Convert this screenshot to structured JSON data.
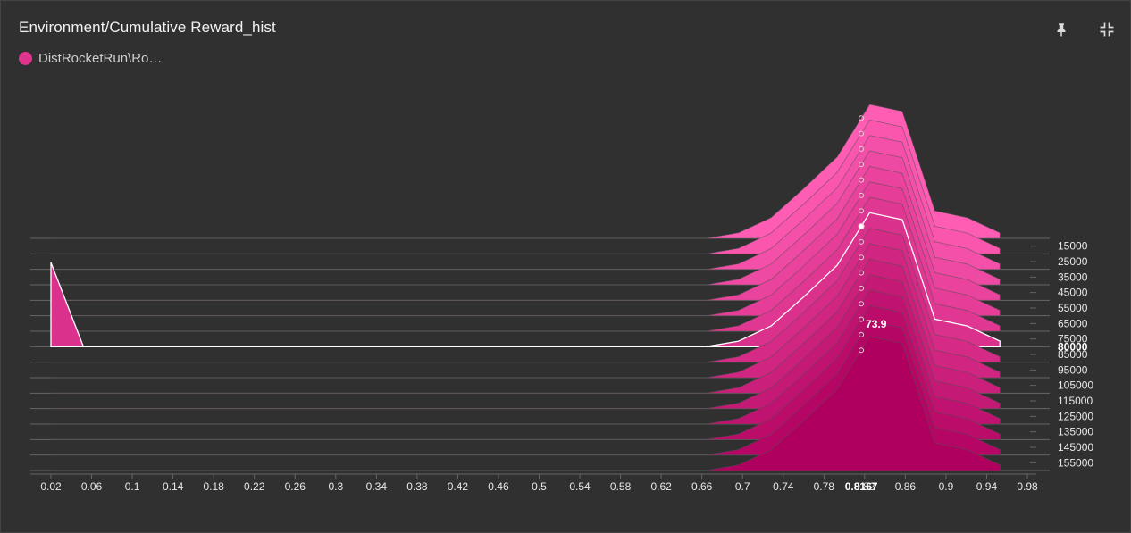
{
  "card": {
    "title": "Environment/Cumulative Reward_hist",
    "legend_label": "DistRocketRun\\Ro…",
    "series_color": "#e0338e"
  },
  "icons": {
    "pin": "pin-icon",
    "collapse": "collapse-icon"
  },
  "chart_data": {
    "type": "histogram-offset",
    "title": "Environment/Cumulative Reward_hist",
    "x_ticks": [
      0.02,
      0.06,
      0.1,
      0.14,
      0.18,
      0.22,
      0.26,
      0.3,
      0.34,
      0.38,
      0.42,
      0.46,
      0.5,
      0.54,
      0.58,
      0.62,
      0.66,
      0.7,
      0.74,
      0.78,
      0.82,
      0.86,
      0.9,
      0.94,
      0.98
    ],
    "xlim": [
      0.02,
      0.98
    ],
    "y_ticks": [
      15000,
      25000,
      35000,
      45000,
      55000,
      65000,
      75000,
      85000,
      95000,
      105000,
      115000,
      125000,
      135000,
      145000,
      155000
    ],
    "ylim": [
      10000,
      160000
    ],
    "hover": {
      "step": 80000,
      "x": 0.8167,
      "value": 73.9,
      "x_label": "0.8167",
      "value_label": "73.9",
      "step_label": "80000"
    },
    "x_grid": [
      0.02,
      0.052,
      0.084,
      0.117,
      0.149,
      0.181,
      0.213,
      0.245,
      0.278,
      0.31,
      0.342,
      0.374,
      0.406,
      0.438,
      0.471,
      0.503,
      0.535,
      0.567,
      0.599,
      0.632,
      0.664,
      0.696,
      0.728,
      0.76,
      0.793,
      0.825,
      0.857,
      0.889,
      0.921,
      0.953
    ],
    "series": [
      {
        "step": 10000,
        "values": [
          0,
          0,
          0,
          0,
          0,
          0,
          0,
          0,
          0,
          0,
          0,
          0,
          0,
          0,
          0,
          0,
          0,
          0,
          0,
          0,
          0,
          4,
          15,
          36,
          59,
          97,
          92,
          20,
          15,
          4
        ]
      },
      {
        "step": 20000,
        "values": [
          0,
          0,
          0,
          0,
          0,
          0,
          0,
          0,
          0,
          0,
          0,
          0,
          0,
          0,
          0,
          0,
          0,
          0,
          0,
          0,
          0,
          4,
          15,
          36,
          59,
          97,
          92,
          20,
          15,
          4
        ]
      },
      {
        "step": 30000,
        "values": [
          0,
          0,
          0,
          0,
          0,
          0,
          0,
          0,
          0,
          0,
          0,
          0,
          0,
          0,
          0,
          0,
          0,
          0,
          0,
          0,
          0,
          4,
          15,
          36,
          59,
          97,
          92,
          20,
          15,
          4
        ]
      },
      {
        "step": 40000,
        "values": [
          0,
          0,
          0,
          0,
          0,
          0,
          0,
          0,
          0,
          0,
          0,
          0,
          0,
          0,
          0,
          0,
          0,
          0,
          0,
          0,
          0,
          4,
          15,
          36,
          59,
          97,
          92,
          20,
          15,
          4
        ]
      },
      {
        "step": 50000,
        "values": [
          0,
          0,
          0,
          0,
          0,
          0,
          0,
          0,
          0,
          0,
          0,
          0,
          0,
          0,
          0,
          0,
          0,
          0,
          0,
          0,
          0,
          4,
          15,
          36,
          59,
          97,
          92,
          20,
          15,
          4
        ]
      },
      {
        "step": 60000,
        "values": [
          0,
          0,
          0,
          0,
          0,
          0,
          0,
          0,
          0,
          0,
          0,
          0,
          0,
          0,
          0,
          0,
          0,
          0,
          0,
          0,
          0,
          4,
          15,
          36,
          59,
          97,
          92,
          20,
          15,
          4
        ]
      },
      {
        "step": 70000,
        "values": [
          0,
          0,
          0,
          0,
          0,
          0,
          0,
          0,
          0,
          0,
          0,
          0,
          0,
          0,
          0,
          0,
          0,
          0,
          0,
          0,
          0,
          4,
          15,
          36,
          59,
          97,
          92,
          20,
          15,
          4
        ]
      },
      {
        "step": 80000,
        "values": [
          61,
          0,
          0,
          0,
          0,
          0,
          0,
          0,
          0,
          0,
          0,
          0,
          0,
          0,
          0,
          0,
          0,
          0,
          0,
          0,
          0,
          4,
          15,
          36,
          59,
          97,
          92,
          20,
          15,
          4
        ]
      },
      {
        "step": 90000,
        "values": [
          0,
          0,
          0,
          0,
          0,
          0,
          0,
          0,
          0,
          0,
          0,
          0,
          0,
          0,
          0,
          0,
          0,
          0,
          0,
          0,
          0,
          4,
          15,
          36,
          59,
          97,
          92,
          20,
          15,
          4
        ]
      },
      {
        "step": 100000,
        "values": [
          0,
          0,
          0,
          0,
          0,
          0,
          0,
          0,
          0,
          0,
          0,
          0,
          0,
          0,
          0,
          0,
          0,
          0,
          0,
          0,
          0,
          4,
          15,
          36,
          59,
          97,
          92,
          20,
          15,
          4
        ]
      },
      {
        "step": 110000,
        "values": [
          0,
          0,
          0,
          0,
          0,
          0,
          0,
          0,
          0,
          0,
          0,
          0,
          0,
          0,
          0,
          0,
          0,
          0,
          0,
          0,
          0,
          4,
          15,
          36,
          59,
          97,
          92,
          20,
          15,
          4
        ]
      },
      {
        "step": 120000,
        "values": [
          0,
          0,
          0,
          0,
          0,
          0,
          0,
          0,
          0,
          0,
          0,
          0,
          0,
          0,
          0,
          0,
          0,
          0,
          0,
          0,
          0,
          4,
          15,
          36,
          59,
          97,
          92,
          20,
          15,
          4
        ]
      },
      {
        "step": 130000,
        "values": [
          0,
          0,
          0,
          0,
          0,
          0,
          0,
          0,
          0,
          0,
          0,
          0,
          0,
          0,
          0,
          0,
          0,
          0,
          0,
          0,
          0,
          4,
          15,
          36,
          59,
          97,
          92,
          20,
          15,
          4
        ]
      },
      {
        "step": 140000,
        "values": [
          0,
          0,
          0,
          0,
          0,
          0,
          0,
          0,
          0,
          0,
          0,
          0,
          0,
          0,
          0,
          0,
          0,
          0,
          0,
          0,
          0,
          4,
          15,
          36,
          59,
          97,
          92,
          20,
          15,
          4
        ]
      },
      {
        "step": 150000,
        "values": [
          0,
          0,
          0,
          0,
          0,
          0,
          0,
          0,
          0,
          0,
          0,
          0,
          0,
          0,
          0,
          0,
          0,
          0,
          0,
          0,
          0,
          4,
          15,
          36,
          59,
          97,
          92,
          20,
          15,
          4
        ]
      },
      {
        "step": 160000,
        "values": [
          0,
          0,
          0,
          0,
          0,
          0,
          0,
          0,
          0,
          0,
          0,
          0,
          0,
          0,
          0,
          0,
          0,
          0,
          0,
          0,
          0,
          4,
          15,
          36,
          59,
          97,
          92,
          20,
          15,
          4
        ]
      }
    ],
    "value_scale_max": 97,
    "color_light": "#ff5cb4",
    "color_dark": "#b0005f",
    "hover_line_color": "#ffffff",
    "grid_color": "#666666",
    "tick_color": "#e8e8e8"
  }
}
